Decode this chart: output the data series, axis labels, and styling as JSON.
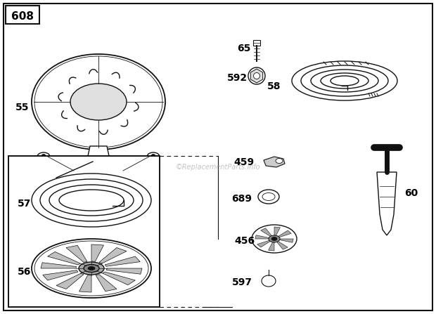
{
  "bg_color": "#ffffff",
  "border_color": "#111111",
  "title_box": "608",
  "watermark": "©ReplacementParts.info"
}
